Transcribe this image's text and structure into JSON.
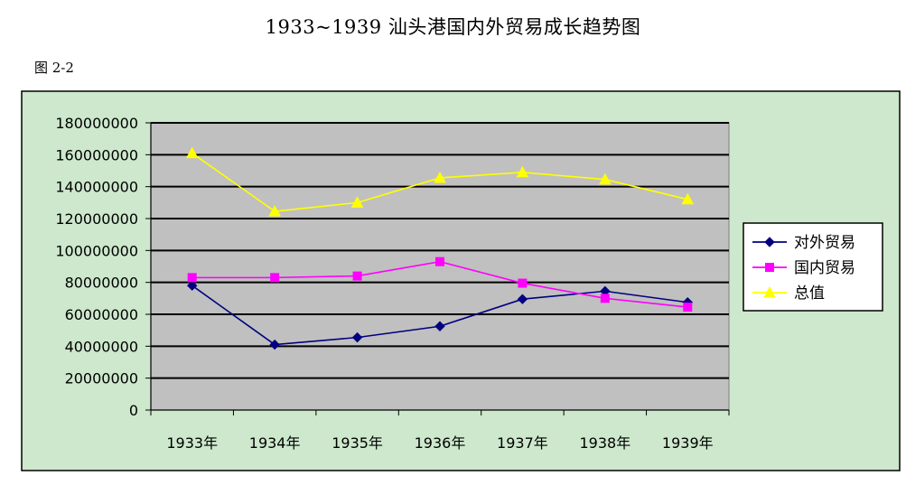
{
  "title": "1933~1939 汕头港国内外贸易成长趋势图",
  "figure_label": "图 2-2",
  "colors": {
    "outer_background": "#cde8cc",
    "plot_background": "#c0c0c0",
    "series": [
      "#000080",
      "#ff00ff",
      "#ffff00"
    ]
  },
  "chart_data": {
    "type": "line",
    "categories": [
      "1933年",
      "1934年",
      "1935年",
      "1936年",
      "1937年",
      "1938年",
      "1939年"
    ],
    "series": [
      {
        "name": "对外贸易",
        "values": [
          78000000,
          41000000,
          45500000,
          52500000,
          69500000,
          74500000,
          67500000
        ],
        "marker": "diamond"
      },
      {
        "name": "国内贸易",
        "values": [
          83000000,
          83000000,
          84000000,
          93000000,
          79500000,
          70000000,
          64500000
        ],
        "marker": "square"
      },
      {
        "name": "总值",
        "values": [
          161000000,
          124500000,
          130000000,
          145500000,
          149000000,
          144500000,
          132000000
        ],
        "marker": "triangle"
      }
    ],
    "ylim": [
      0,
      180000000
    ],
    "yticks": [
      "0",
      "20000000",
      "40000000",
      "60000000",
      "80000000",
      "100000000",
      "120000000",
      "140000000",
      "160000000",
      "180000000"
    ],
    "grid": true,
    "legend_position": "right"
  }
}
